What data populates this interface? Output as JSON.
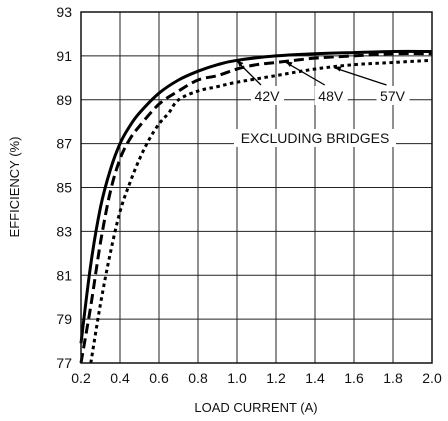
{
  "chart_data": {
    "type": "line",
    "title": "",
    "xlabel": "LOAD CURRENT (A)",
    "ylabel": "EFFICIENCY (%)",
    "xlim": [
      0.2,
      2.0
    ],
    "ylim": [
      77,
      93
    ],
    "xticks": [
      "0.2",
      "0.4",
      "0.6",
      "0.8",
      "1.0",
      "1.2",
      "1.4",
      "1.6",
      "1.8",
      "2.0"
    ],
    "yticks": [
      "77",
      "79",
      "81",
      "83",
      "85",
      "87",
      "89",
      "91",
      "93"
    ],
    "grid": true,
    "series": [
      {
        "name": "42V",
        "style": "solid",
        "x": [
          0.2,
          0.25,
          0.3,
          0.35,
          0.4,
          0.45,
          0.5,
          0.6,
          0.7,
          0.8,
          0.9,
          1.0,
          1.2,
          1.4,
          1.6,
          1.8,
          2.0
        ],
        "y": [
          77.9,
          81.5,
          84.1,
          85.8,
          87.0,
          87.8,
          88.4,
          89.3,
          89.9,
          90.3,
          90.6,
          90.8,
          91.0,
          91.1,
          91.15,
          91.2,
          91.2
        ]
      },
      {
        "name": "48V",
        "style": "dashed",
        "x": [
          0.2,
          0.25,
          0.3,
          0.35,
          0.4,
          0.45,
          0.5,
          0.6,
          0.7,
          0.8,
          0.9,
          1.0,
          1.1,
          1.2,
          1.3,
          1.4,
          1.6,
          1.8,
          2.0
        ],
        "y": [
          77.0,
          79.6,
          82.5,
          84.8,
          86.3,
          87.2,
          87.8,
          88.8,
          89.4,
          89.9,
          90.1,
          90.4,
          90.6,
          90.7,
          90.8,
          90.9,
          91.0,
          91.1,
          91.1
        ]
      },
      {
        "name": "57V",
        "style": "dotted",
        "x": [
          0.25,
          0.3,
          0.35,
          0.4,
          0.45,
          0.5,
          0.55,
          0.6,
          0.65,
          0.7,
          0.8,
          0.9,
          1.0,
          1.2,
          1.4,
          1.6,
          1.8,
          2.0
        ],
        "y": [
          77.0,
          79.7,
          82.0,
          83.9,
          85.2,
          86.3,
          87.2,
          87.9,
          88.4,
          89.0,
          89.4,
          89.6,
          89.8,
          90.1,
          90.4,
          90.6,
          90.7,
          90.8
        ]
      }
    ],
    "annotations": {
      "series_labels": [
        {
          "text": "42V",
          "series": 0,
          "x_at": 1.0
        },
        {
          "text": "48V",
          "series": 1,
          "x_at": 1.25
        },
        {
          "text": "57V",
          "series": 2,
          "x_at": 1.5
        }
      ],
      "note": "EXCLUDING BRIDGES"
    }
  }
}
